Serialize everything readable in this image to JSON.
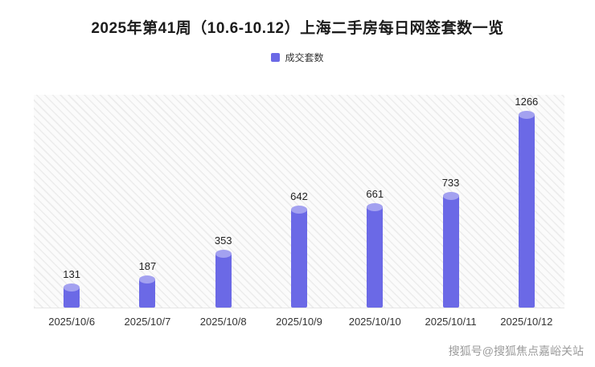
{
  "title": "2025年第41周（10.6-10.12）上海二手房每日网签套数一览",
  "legend": {
    "label": "成交套数",
    "color": "#6b69e6"
  },
  "watermark": "搜狐号@搜狐焦点嘉峪关站",
  "chart_data": {
    "type": "bar",
    "title": "2025年第41周（10.6-10.12）上海二手房每日网签套数一览",
    "series_name": "成交套数",
    "categories": [
      "2025/10/6",
      "2025/10/7",
      "2025/10/8",
      "2025/10/9",
      "2025/10/10",
      "2025/10/11",
      "2025/10/12"
    ],
    "values": [
      131,
      187,
      353,
      642,
      661,
      733,
      1266
    ],
    "xlabel": "",
    "ylabel": "",
    "ylim": [
      0,
      1400
    ],
    "grid": false,
    "legend_position": "top",
    "bar_color": "#6b69e6",
    "bar_top_highlight_color": "#a3a1f0",
    "plot_background": "diagonal-hatch"
  }
}
